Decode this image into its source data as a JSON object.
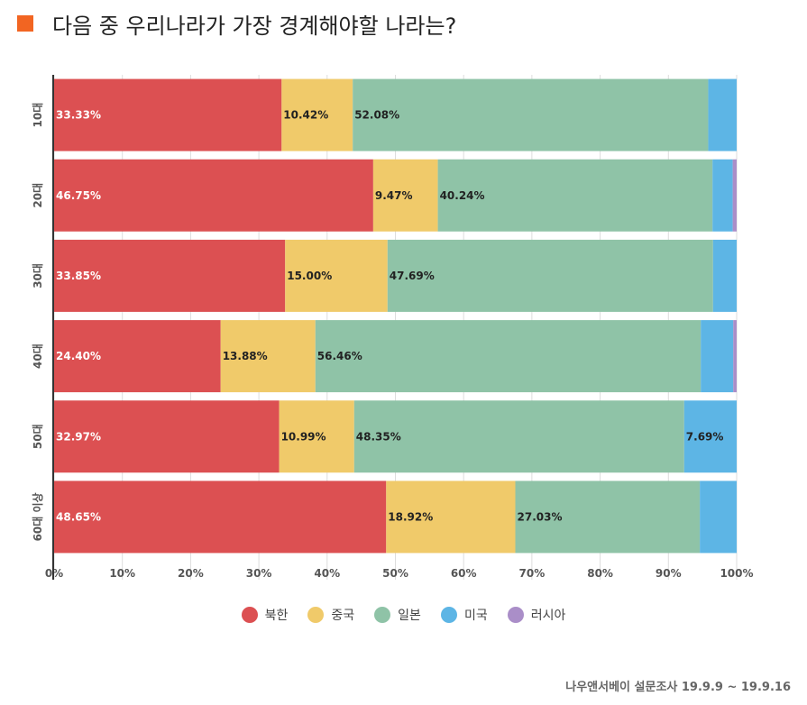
{
  "title": "다음 중 우리나라가 가장 경계해야할 나라는?",
  "source": "나우앤서베이 설문조사 19.9.9 ~ 19.9.16",
  "colors": {
    "title_marker": "#f26522"
  },
  "chart_data": {
    "type": "bar",
    "orientation": "horizontal",
    "stacked": true,
    "percent": true,
    "categories": [
      "10대",
      "20대",
      "30대",
      "40대",
      "50대",
      "60대 이상"
    ],
    "xlim": [
      0,
      100
    ],
    "xticks": [
      "0%",
      "10%",
      "20%",
      "30%",
      "40%",
      "50%",
      "60%",
      "70%",
      "80%",
      "90%",
      "100%"
    ],
    "legend_position": "bottom",
    "series": [
      {
        "name": "북한",
        "color": "#dc5052",
        "label_color": "#ffffff",
        "values": [
          33.33,
          46.75,
          33.85,
          24.4,
          32.97,
          48.65
        ],
        "labels": [
          "33.33%",
          "46.75%",
          "33.85%",
          "24.40%",
          "32.97%",
          "48.65%"
        ]
      },
      {
        "name": "중국",
        "color": "#f0ca6a",
        "label_color": "#222222",
        "values": [
          10.42,
          9.47,
          15.0,
          13.88,
          10.99,
          18.92
        ],
        "labels": [
          "10.42%",
          "9.47%",
          "15.00%",
          "13.88%",
          "10.99%",
          "18.92%"
        ]
      },
      {
        "name": "일본",
        "color": "#8fc3a7",
        "label_color": "#222222",
        "values": [
          52.08,
          40.24,
          47.69,
          56.46,
          48.35,
          27.03
        ],
        "labels": [
          "52.08%",
          "40.24%",
          "47.69%",
          "56.46%",
          "48.35%",
          "27.03%"
        ]
      },
      {
        "name": "미국",
        "color": "#5db5e5",
        "label_color": "#222222",
        "values": [
          4.17,
          2.96,
          3.46,
          4.76,
          7.69,
          5.4
        ],
        "labels": [
          "",
          "",
          "",
          "",
          "7.69%",
          ""
        ]
      },
      {
        "name": "러시아",
        "color": "#aa8ec8",
        "label_color": "#222222",
        "values": [
          0,
          0.58,
          0,
          0.5,
          0,
          0
        ],
        "labels": [
          "",
          "",
          "",
          "",
          "",
          ""
        ]
      }
    ]
  }
}
